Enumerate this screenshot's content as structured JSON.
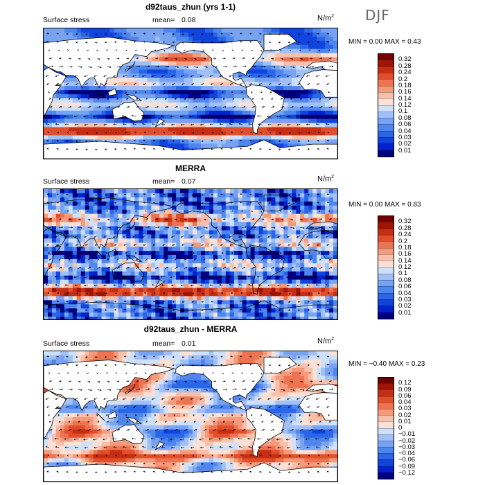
{
  "season": "DJF",
  "palettes": {
    "abs": [
      "#00007f",
      "#0022cc",
      "#1144dd",
      "#2a66e8",
      "#4f86ee",
      "#77a3f2",
      "#a0c0f6",
      "#cfe0fb",
      "#fbe0d6",
      "#f8c0aa",
      "#f59a7a",
      "#ee7350",
      "#e04e2c",
      "#c62e14",
      "#9e1406",
      "#700000"
    ],
    "diff": [
      "#00007f",
      "#0022cc",
      "#1144dd",
      "#2a66e8",
      "#4f86ee",
      "#77a3f2",
      "#a0c0f6",
      "#cfe0fb",
      "#fbe0d6",
      "#f8c0aa",
      "#f59a7a",
      "#ee7350",
      "#e04e2c",
      "#c62e14",
      "#9e1406",
      "#700000"
    ]
  },
  "panels": [
    {
      "title": "d92taus_zhun (yrs 1-1)",
      "variable": "Surface stress",
      "mean_label": "mean=",
      "mean_value": "0.08",
      "units_base": "N/m",
      "units_exp": "2",
      "min_label": "MIN =",
      "min_value": "0.00",
      "max_label": "MAX =",
      "max_value": "0.43",
      "palette": "abs",
      "contour_levels": [
        "0.32",
        "0.28",
        "0.24",
        "0.2",
        "0.18",
        "0.16",
        "0.14",
        "0.12",
        "0.1",
        "0.08",
        "0.06",
        "0.04",
        "0.03",
        "0.02",
        "0.01"
      ]
    },
    {
      "title": "MERRA",
      "variable": "Surface stress",
      "mean_label": "mean=",
      "mean_value": "0.07",
      "units_base": "N/m",
      "units_exp": "2",
      "min_label": "MIN =",
      "min_value": "0.00",
      "max_label": "MAX =",
      "max_value": "0.83",
      "palette": "abs",
      "contour_levels": [
        "0.32",
        "0.28",
        "0.24",
        "0.2",
        "0.18",
        "0.16",
        "0.14",
        "0.12",
        "0.1",
        "0.08",
        "0.06",
        "0.04",
        "0.03",
        "0.02",
        "0.01"
      ]
    },
    {
      "title": "d92taus_zhun - MERRA",
      "variable": "Surface stress",
      "mean_label": "mean=",
      "mean_value": "0.01",
      "units_base": "N/m",
      "units_exp": "2",
      "min_label": "MIN =",
      "min_value": "−0.40",
      "max_label": "MAX =",
      "max_value": "0.23",
      "palette": "diff",
      "contour_levels": [
        "0.12",
        "0.09",
        "0.06",
        "0.04",
        "0.03",
        "0.02",
        "0.01",
        "0",
        "−0.01",
        "−0.02",
        "−0.03",
        "−0.04",
        "−0.06",
        "−0.09",
        "−0.12"
      ]
    }
  ]
}
